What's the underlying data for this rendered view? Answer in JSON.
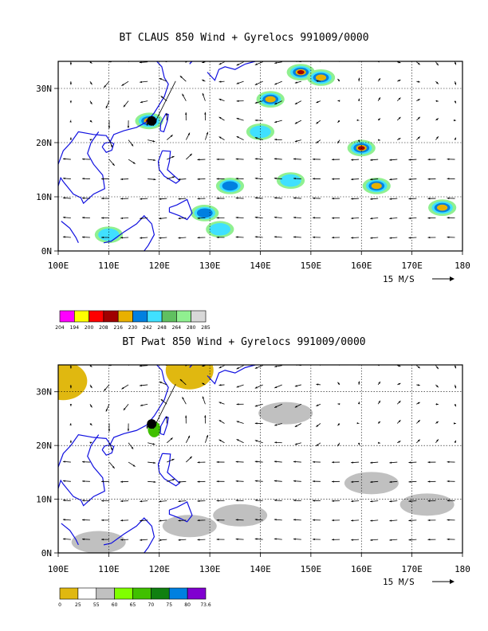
{
  "chart_data": [
    {
      "type": "vector-map",
      "title": "BT CLAUS 850 Wind + Gyrelocs 991009/0000",
      "x_ticks": [
        "100E",
        "110E",
        "120E",
        "130E",
        "140E",
        "150E",
        "160E",
        "170E",
        "180"
      ],
      "y_ticks": [
        "0N",
        "10N",
        "20N",
        "30N"
      ],
      "xlim": [
        100,
        180
      ],
      "ylim": [
        0,
        35
      ],
      "grid": true,
      "scale_label": "15 M/S",
      "colorbar_labels": [
        "204",
        "194",
        "200",
        "208",
        "216",
        "230",
        "242",
        "248",
        "264",
        "280",
        "285"
      ],
      "colorbar_colors": [
        "#ff00ff",
        "#ffff00",
        "#ff0000",
        "#a00000",
        "#e8b000",
        "#0080e0",
        "#40e0ff",
        "#60c060",
        "#90f090",
        "#d8d8d8"
      ],
      "storm_center": {
        "lon": 118.5,
        "lat": 24
      },
      "fields": [
        {
          "lon": 142,
          "lat": 28,
          "level": 3
        },
        {
          "lon": 148,
          "lat": 33,
          "level": 4
        },
        {
          "lon": 152,
          "lat": 32,
          "level": 3
        },
        {
          "lon": 160,
          "lat": 19,
          "level": 4
        },
        {
          "lon": 163,
          "lat": 12,
          "level": 3
        },
        {
          "lon": 176,
          "lat": 8,
          "level": 3
        },
        {
          "lon": 118,
          "lat": 24,
          "level": 4
        },
        {
          "lon": 134,
          "lat": 12,
          "level": 2
        },
        {
          "lon": 129,
          "lat": 7,
          "level": 2
        },
        {
          "lon": 140,
          "lat": 22,
          "level": 1
        },
        {
          "lon": 146,
          "lat": 13,
          "level": 1
        },
        {
          "lon": 110,
          "lat": 3,
          "level": 1
        },
        {
          "lon": 132,
          "lat": 4,
          "level": 1
        }
      ]
    },
    {
      "type": "vector-map",
      "title": "BT Pwat 850 Wind + Gyrelocs 991009/0000",
      "x_ticks": [
        "100E",
        "110E",
        "120E",
        "130E",
        "140E",
        "150E",
        "160E",
        "170E",
        "180"
      ],
      "y_ticks": [
        "0N",
        "10N",
        "20N",
        "30N"
      ],
      "xlim": [
        100,
        180
      ],
      "ylim": [
        0,
        35
      ],
      "grid": true,
      "scale_label": "15 M/S",
      "colorbar_labels": [
        "0",
        "25",
        "55",
        "60",
        "65",
        "70",
        "75",
        "80",
        "73.6"
      ],
      "colorbar_colors": [
        "#e0b810",
        "#ffffff",
        "#c0c0c0",
        "#80ff00",
        "#40c000",
        "#108010",
        "#0080e0",
        "#8000d0"
      ],
      "storm_center": {
        "lon": 118.5,
        "lat": 24
      },
      "fields": [
        {
          "lon": 101,
          "lat": 32,
          "level": 0
        },
        {
          "lon": 126,
          "lat": 34,
          "level": 0
        },
        {
          "lon": 136,
          "lat": 7,
          "level": 2
        },
        {
          "lon": 126,
          "lat": 5,
          "level": 2
        },
        {
          "lon": 145,
          "lat": 26,
          "level": 2
        },
        {
          "lon": 162,
          "lat": 13,
          "level": 2
        },
        {
          "lon": 108,
          "lat": 2,
          "level": 2
        },
        {
          "lon": 173,
          "lat": 9,
          "level": 2
        },
        {
          "lon": 119,
          "lat": 23,
          "level": 4
        }
      ]
    }
  ]
}
